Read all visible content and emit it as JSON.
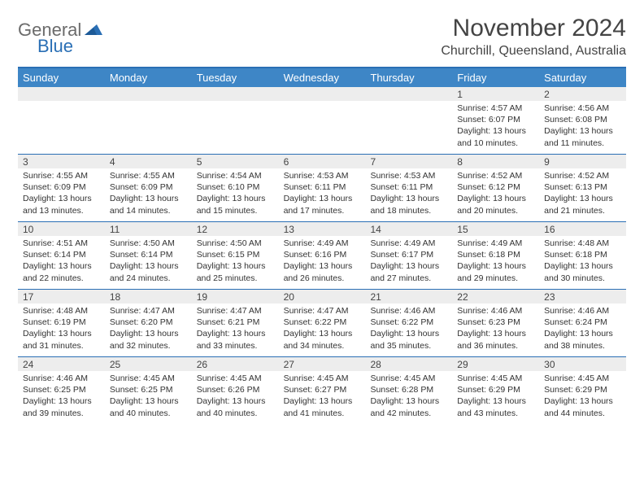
{
  "logo": {
    "text1": "General",
    "text2": "Blue"
  },
  "title": "November 2024",
  "location": "Churchill, Queensland, Australia",
  "colors": {
    "header_bg": "#3e86c6",
    "border": "#2a6fb5",
    "daynum_bg": "#ededed",
    "text": "#333333",
    "logo_gray": "#6b6b6b",
    "logo_blue": "#2a6fb5"
  },
  "day_headers": [
    "Sunday",
    "Monday",
    "Tuesday",
    "Wednesday",
    "Thursday",
    "Friday",
    "Saturday"
  ],
  "weeks": [
    [
      {
        "n": "",
        "sunrise": "",
        "sunset": "",
        "daylight": ""
      },
      {
        "n": "",
        "sunrise": "",
        "sunset": "",
        "daylight": ""
      },
      {
        "n": "",
        "sunrise": "",
        "sunset": "",
        "daylight": ""
      },
      {
        "n": "",
        "sunrise": "",
        "sunset": "",
        "daylight": ""
      },
      {
        "n": "",
        "sunrise": "",
        "sunset": "",
        "daylight": ""
      },
      {
        "n": "1",
        "sunrise": "Sunrise: 4:57 AM",
        "sunset": "Sunset: 6:07 PM",
        "daylight": "Daylight: 13 hours and 10 minutes."
      },
      {
        "n": "2",
        "sunrise": "Sunrise: 4:56 AM",
        "sunset": "Sunset: 6:08 PM",
        "daylight": "Daylight: 13 hours and 11 minutes."
      }
    ],
    [
      {
        "n": "3",
        "sunrise": "Sunrise: 4:55 AM",
        "sunset": "Sunset: 6:09 PM",
        "daylight": "Daylight: 13 hours and 13 minutes."
      },
      {
        "n": "4",
        "sunrise": "Sunrise: 4:55 AM",
        "sunset": "Sunset: 6:09 PM",
        "daylight": "Daylight: 13 hours and 14 minutes."
      },
      {
        "n": "5",
        "sunrise": "Sunrise: 4:54 AM",
        "sunset": "Sunset: 6:10 PM",
        "daylight": "Daylight: 13 hours and 15 minutes."
      },
      {
        "n": "6",
        "sunrise": "Sunrise: 4:53 AM",
        "sunset": "Sunset: 6:11 PM",
        "daylight": "Daylight: 13 hours and 17 minutes."
      },
      {
        "n": "7",
        "sunrise": "Sunrise: 4:53 AM",
        "sunset": "Sunset: 6:11 PM",
        "daylight": "Daylight: 13 hours and 18 minutes."
      },
      {
        "n": "8",
        "sunrise": "Sunrise: 4:52 AM",
        "sunset": "Sunset: 6:12 PM",
        "daylight": "Daylight: 13 hours and 20 minutes."
      },
      {
        "n": "9",
        "sunrise": "Sunrise: 4:52 AM",
        "sunset": "Sunset: 6:13 PM",
        "daylight": "Daylight: 13 hours and 21 minutes."
      }
    ],
    [
      {
        "n": "10",
        "sunrise": "Sunrise: 4:51 AM",
        "sunset": "Sunset: 6:14 PM",
        "daylight": "Daylight: 13 hours and 22 minutes."
      },
      {
        "n": "11",
        "sunrise": "Sunrise: 4:50 AM",
        "sunset": "Sunset: 6:14 PM",
        "daylight": "Daylight: 13 hours and 24 minutes."
      },
      {
        "n": "12",
        "sunrise": "Sunrise: 4:50 AM",
        "sunset": "Sunset: 6:15 PM",
        "daylight": "Daylight: 13 hours and 25 minutes."
      },
      {
        "n": "13",
        "sunrise": "Sunrise: 4:49 AM",
        "sunset": "Sunset: 6:16 PM",
        "daylight": "Daylight: 13 hours and 26 minutes."
      },
      {
        "n": "14",
        "sunrise": "Sunrise: 4:49 AM",
        "sunset": "Sunset: 6:17 PM",
        "daylight": "Daylight: 13 hours and 27 minutes."
      },
      {
        "n": "15",
        "sunrise": "Sunrise: 4:49 AM",
        "sunset": "Sunset: 6:18 PM",
        "daylight": "Daylight: 13 hours and 29 minutes."
      },
      {
        "n": "16",
        "sunrise": "Sunrise: 4:48 AM",
        "sunset": "Sunset: 6:18 PM",
        "daylight": "Daylight: 13 hours and 30 minutes."
      }
    ],
    [
      {
        "n": "17",
        "sunrise": "Sunrise: 4:48 AM",
        "sunset": "Sunset: 6:19 PM",
        "daylight": "Daylight: 13 hours and 31 minutes."
      },
      {
        "n": "18",
        "sunrise": "Sunrise: 4:47 AM",
        "sunset": "Sunset: 6:20 PM",
        "daylight": "Daylight: 13 hours and 32 minutes."
      },
      {
        "n": "19",
        "sunrise": "Sunrise: 4:47 AM",
        "sunset": "Sunset: 6:21 PM",
        "daylight": "Daylight: 13 hours and 33 minutes."
      },
      {
        "n": "20",
        "sunrise": "Sunrise: 4:47 AM",
        "sunset": "Sunset: 6:22 PM",
        "daylight": "Daylight: 13 hours and 34 minutes."
      },
      {
        "n": "21",
        "sunrise": "Sunrise: 4:46 AM",
        "sunset": "Sunset: 6:22 PM",
        "daylight": "Daylight: 13 hours and 35 minutes."
      },
      {
        "n": "22",
        "sunrise": "Sunrise: 4:46 AM",
        "sunset": "Sunset: 6:23 PM",
        "daylight": "Daylight: 13 hours and 36 minutes."
      },
      {
        "n": "23",
        "sunrise": "Sunrise: 4:46 AM",
        "sunset": "Sunset: 6:24 PM",
        "daylight": "Daylight: 13 hours and 38 minutes."
      }
    ],
    [
      {
        "n": "24",
        "sunrise": "Sunrise: 4:46 AM",
        "sunset": "Sunset: 6:25 PM",
        "daylight": "Daylight: 13 hours and 39 minutes."
      },
      {
        "n": "25",
        "sunrise": "Sunrise: 4:45 AM",
        "sunset": "Sunset: 6:25 PM",
        "daylight": "Daylight: 13 hours and 40 minutes."
      },
      {
        "n": "26",
        "sunrise": "Sunrise: 4:45 AM",
        "sunset": "Sunset: 6:26 PM",
        "daylight": "Daylight: 13 hours and 40 minutes."
      },
      {
        "n": "27",
        "sunrise": "Sunrise: 4:45 AM",
        "sunset": "Sunset: 6:27 PM",
        "daylight": "Daylight: 13 hours and 41 minutes."
      },
      {
        "n": "28",
        "sunrise": "Sunrise: 4:45 AM",
        "sunset": "Sunset: 6:28 PM",
        "daylight": "Daylight: 13 hours and 42 minutes."
      },
      {
        "n": "29",
        "sunrise": "Sunrise: 4:45 AM",
        "sunset": "Sunset: 6:29 PM",
        "daylight": "Daylight: 13 hours and 43 minutes."
      },
      {
        "n": "30",
        "sunrise": "Sunrise: 4:45 AM",
        "sunset": "Sunset: 6:29 PM",
        "daylight": "Daylight: 13 hours and 44 minutes."
      }
    ]
  ]
}
